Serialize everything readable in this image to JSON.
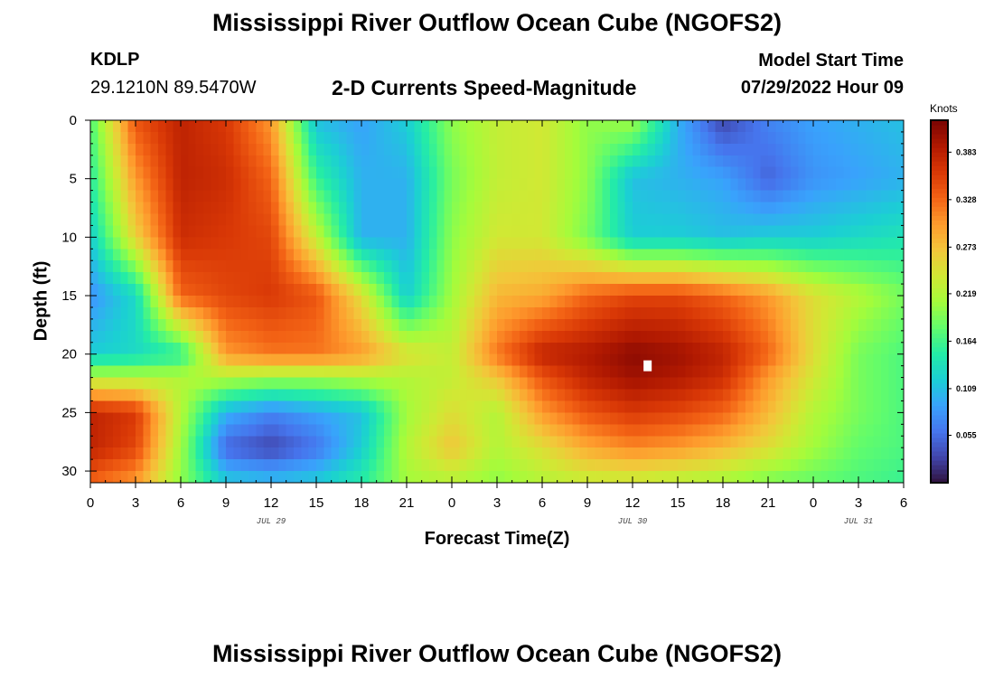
{
  "title": "Mississippi River Outflow Ocean Cube (NGOFS2)",
  "title_bottom": "Mississippi River Outflow Ocean Cube (NGOFS2)",
  "station": {
    "id": "KDLP",
    "coords": "29.1210N  89.5470W"
  },
  "subtitle": "2-D Currents Speed-Magnitude",
  "model_start": {
    "label": "Model Start Time",
    "value": "07/29/2022 Hour 09"
  },
  "colors": {
    "colormap": [
      "#30123b",
      "#4145ab",
      "#4675ed",
      "#39a2fc",
      "#1bcfd4",
      "#24eca6",
      "#61fc6c",
      "#a4fc3b",
      "#d1e834",
      "#f3c63a",
      "#fe9b2d",
      "#f36315",
      "#d93806",
      "#b11901",
      "#7a0403"
    ],
    "marker": "#ffffff"
  },
  "chart_data": {
    "type": "heatmap",
    "title": "2-D Currents Speed-Magnitude",
    "xlabel": "Forecast Time(Z)",
    "ylabel": "Depth (ft)",
    "x_tick_labels": [
      "0",
      "3",
      "6",
      "9",
      "12",
      "15",
      "18",
      "21",
      "0",
      "3",
      "6",
      "9",
      "12",
      "15",
      "18",
      "21",
      "0",
      "3",
      "6"
    ],
    "x_ticks_hours": [
      0,
      3,
      6,
      9,
      12,
      15,
      18,
      21,
      24,
      27,
      30,
      33,
      36,
      39,
      42,
      45,
      48,
      51,
      54
    ],
    "date_labels": [
      {
        "label": "JUL 29",
        "hour": 12
      },
      {
        "label": "JUL 30",
        "hour": 36
      },
      {
        "label": "JUL 31",
        "hour": 51
      }
    ],
    "xlim_hours": [
      0,
      54
    ],
    "y_tick_labels": [
      "0",
      "5",
      "10",
      "15",
      "20",
      "25",
      "30"
    ],
    "y_ticks": [
      0,
      5,
      10,
      15,
      20,
      25,
      30
    ],
    "ylim": [
      0,
      31
    ],
    "y_inverted": true,
    "colorbar": {
      "unit": "Knots",
      "range": [
        0.0,
        0.42
      ],
      "tick_labels": [
        "0.055",
        "0.109",
        "0.164",
        "0.219",
        "0.273",
        "0.328",
        "0.383"
      ],
      "tick_values": [
        0.055,
        0.109,
        0.164,
        0.219,
        0.273,
        0.328,
        0.383
      ]
    },
    "marker": {
      "hour": 37,
      "depth": 21
    },
    "grid": {
      "x_hours": [
        0,
        3,
        6,
        9,
        12,
        15,
        18,
        21,
        24,
        27,
        30,
        33,
        36,
        39,
        42,
        45,
        48,
        51,
        54
      ],
      "depths": [
        0,
        5,
        10,
        15,
        20,
        22,
        25,
        28,
        31
      ],
      "values": [
        [
          0.17,
          0.34,
          0.38,
          0.36,
          0.3,
          0.11,
          0.09,
          0.12,
          0.2,
          0.23,
          0.24,
          0.2,
          0.21,
          0.1,
          0.03,
          0.07,
          0.09,
          0.1,
          0.11
        ],
        [
          0.15,
          0.3,
          0.38,
          0.37,
          0.33,
          0.16,
          0.1,
          0.1,
          0.19,
          0.23,
          0.24,
          0.2,
          0.11,
          0.1,
          0.09,
          0.05,
          0.08,
          0.09,
          0.1
        ],
        [
          0.12,
          0.26,
          0.37,
          0.36,
          0.35,
          0.23,
          0.1,
          0.1,
          0.2,
          0.24,
          0.24,
          0.19,
          0.12,
          0.12,
          0.11,
          0.12,
          0.12,
          0.13,
          0.14
        ],
        [
          0.08,
          0.13,
          0.33,
          0.35,
          0.36,
          0.34,
          0.25,
          0.12,
          0.21,
          0.28,
          0.29,
          0.33,
          0.35,
          0.35,
          0.33,
          0.3,
          0.25,
          0.22,
          0.19
        ],
        [
          0.12,
          0.13,
          0.15,
          0.3,
          0.32,
          0.32,
          0.3,
          0.25,
          0.23,
          0.32,
          0.38,
          0.39,
          0.41,
          0.4,
          0.38,
          0.33,
          0.25,
          0.19,
          0.17
        ],
        [
          0.22,
          0.22,
          0.22,
          0.22,
          0.21,
          0.21,
          0.22,
          0.22,
          0.23,
          0.27,
          0.34,
          0.38,
          0.4,
          0.39,
          0.37,
          0.3,
          0.24,
          0.19,
          0.17
        ],
        [
          0.38,
          0.36,
          0.22,
          0.1,
          0.07,
          0.09,
          0.11,
          0.21,
          0.25,
          0.22,
          0.3,
          0.34,
          0.36,
          0.35,
          0.33,
          0.28,
          0.22,
          0.19,
          0.17
        ],
        [
          0.38,
          0.35,
          0.21,
          0.05,
          0.03,
          0.06,
          0.12,
          0.22,
          0.27,
          0.22,
          0.25,
          0.29,
          0.31,
          0.3,
          0.28,
          0.25,
          0.21,
          0.18,
          0.17
        ],
        [
          0.33,
          0.3,
          0.2,
          0.12,
          0.11,
          0.12,
          0.15,
          0.21,
          0.22,
          0.2,
          0.22,
          0.23,
          0.23,
          0.22,
          0.21,
          0.19,
          0.18,
          0.17,
          0.16
        ]
      ]
    }
  }
}
